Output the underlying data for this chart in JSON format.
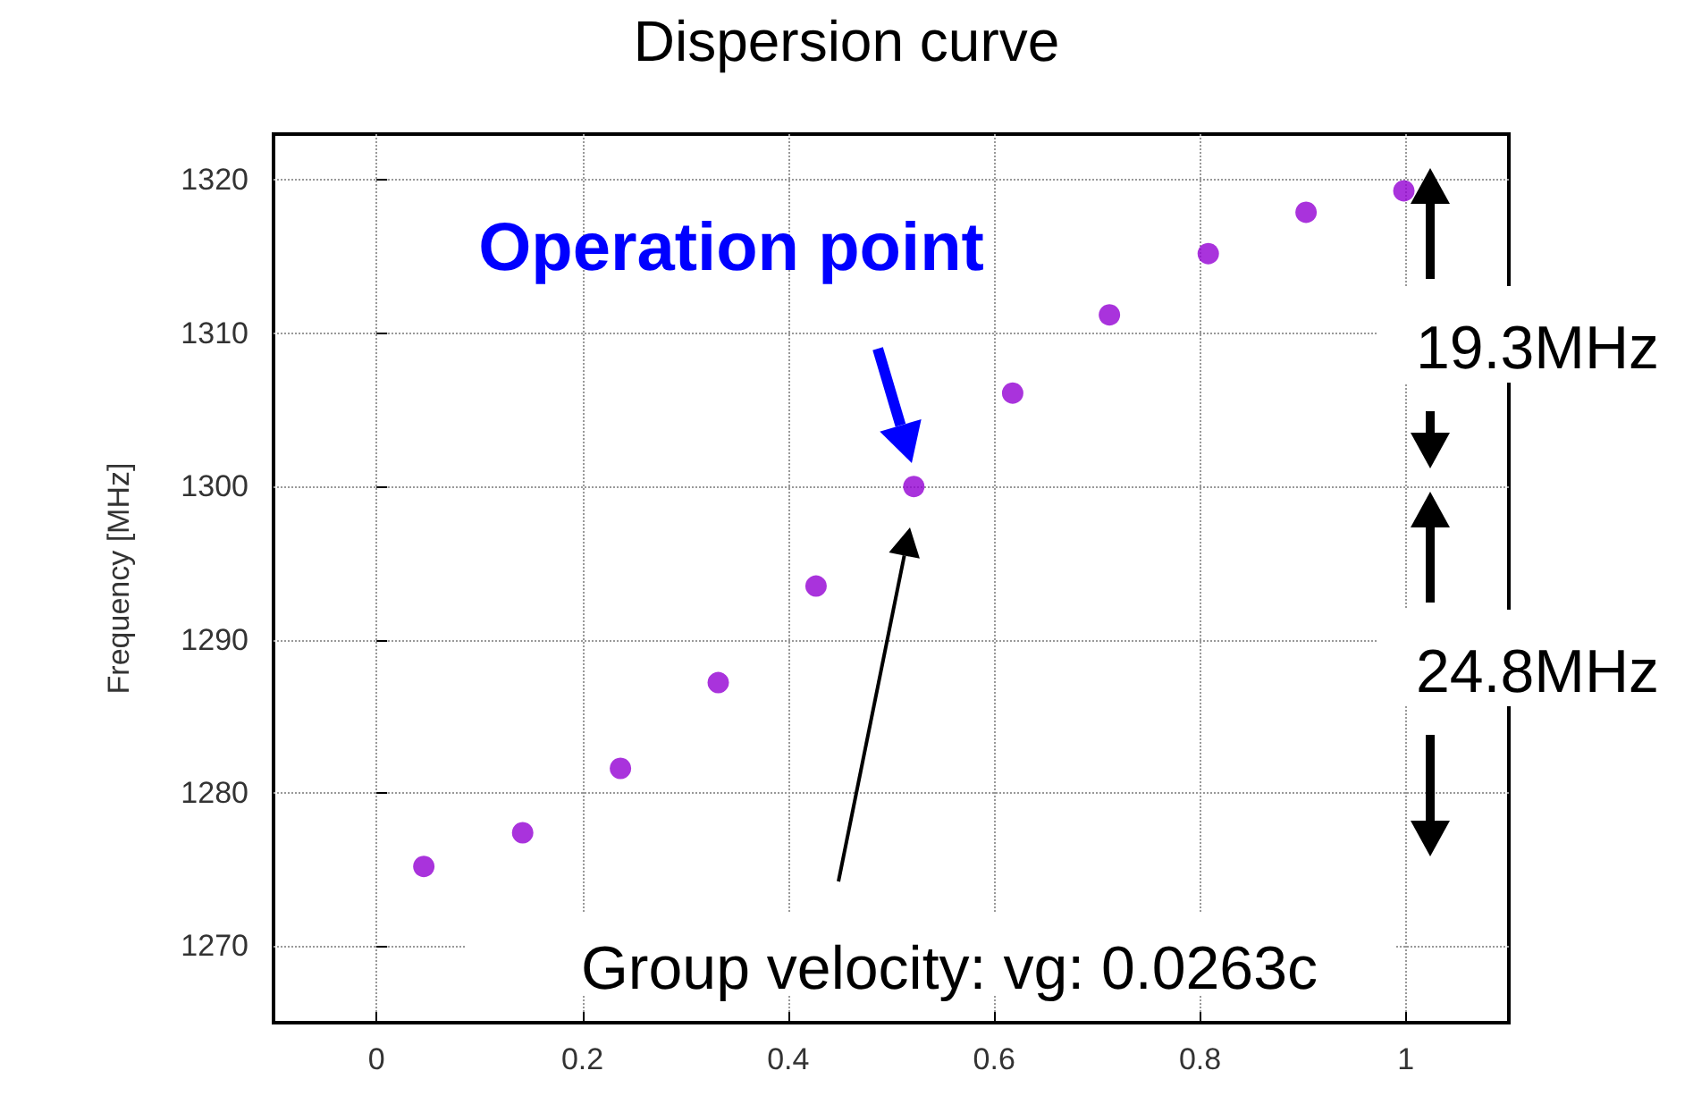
{
  "chart_data": {
    "type": "scatter",
    "title": "Dispersion curve",
    "ylabel": "Frequency [MHz]",
    "x": [
      0.046,
      0.142,
      0.237,
      0.332,
      0.427,
      0.522,
      0.618,
      0.712,
      0.808,
      0.903,
      0.998
    ],
    "series": [
      {
        "color": "#9400d3",
        "values": [
          1275.2,
          1277.4,
          1281.6,
          1287.2,
          1293.5,
          1300.0,
          1306.1,
          1311.2,
          1315.2,
          1317.9,
          1319.3
        ]
      }
    ],
    "xlim": [
      -0.1,
      1.1
    ],
    "xticks": [
      0,
      0.2,
      0.4,
      0.6,
      0.8,
      1
    ],
    "ylim": [
      1265,
      1323
    ],
    "yticks": [
      1270,
      1280,
      1290,
      1300,
      1310,
      1320
    ],
    "grid": true,
    "marker": "circle",
    "annotations": [
      "Operation point",
      "Group velocity: vg: 0.0263c",
      "19.3MHz",
      "24.8MHz"
    ]
  }
}
